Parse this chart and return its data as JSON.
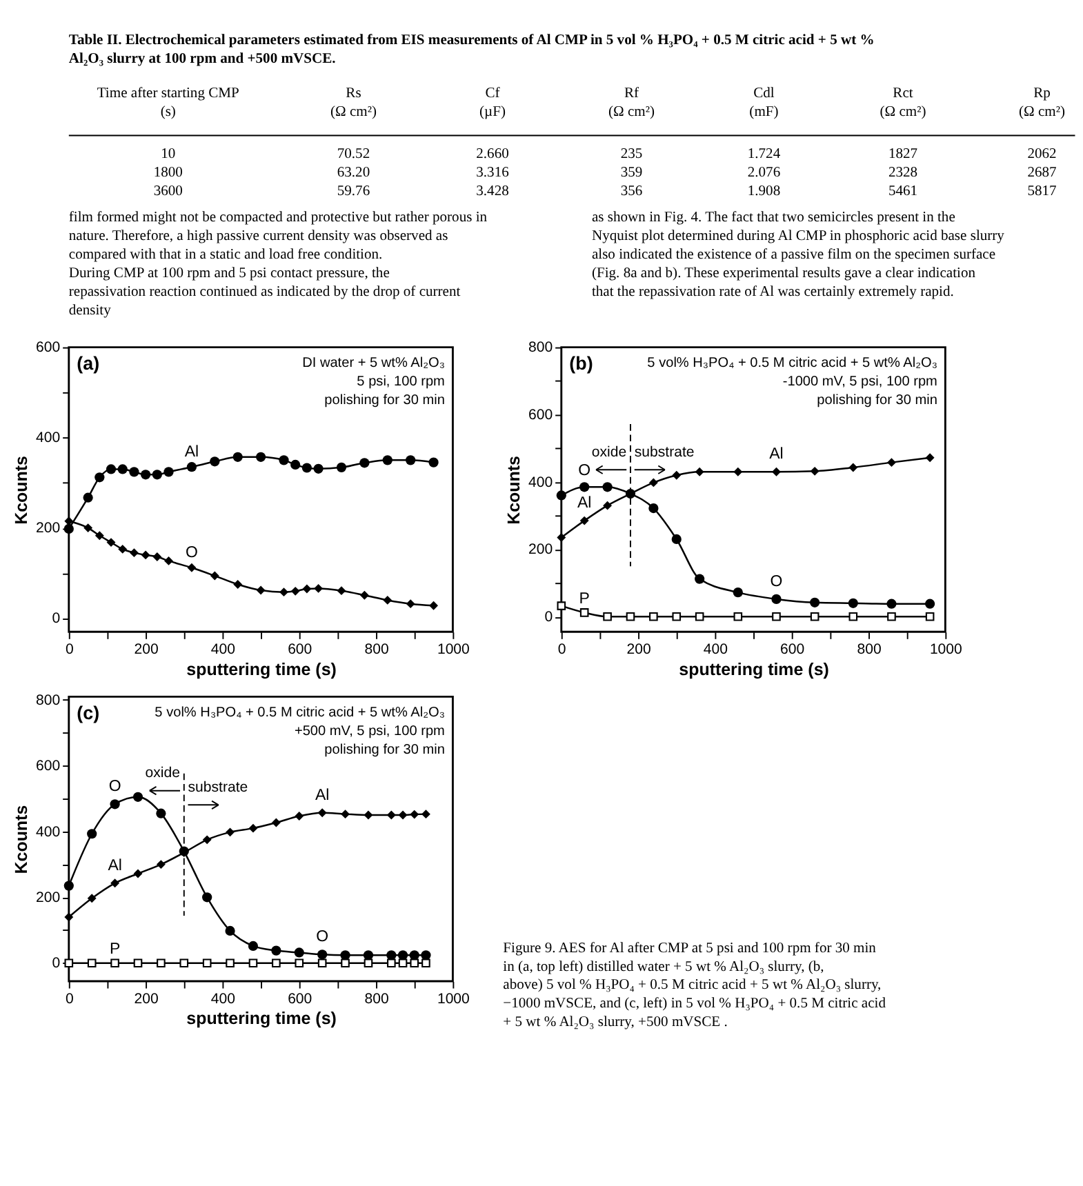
{
  "chart_data": [
    {
      "type": "other",
      "title": "Table II. Electrochemical parameters estimated from EIS measurements of Al CMP in 5 vol % H₃PO₄ + 0.5 M citric acid + 5 wt % Al₂O₃ slurry at 100 rpm and +500 mVSCE.",
      "annotations": [
        "Time after starting CMP\n(s)",
        "Rs\n(Ω cm²)",
        "Cf\n(µF)",
        "Rf\n(Ω cm²)",
        "Cdl\n(mF)",
        "Rct\n(Ω cm²)",
        "Rp\n(Ω cm²)",
        "10",
        "70.52",
        "2.660",
        "235",
        "1.724",
        "1827",
        "2062",
        "1800",
        "63.20",
        "3.316",
        "359",
        "2.076",
        "2328",
        "2687",
        "3600",
        "59.76",
        "3.428",
        "356",
        "1.908",
        "5461",
        "5817",
        "film formed might not be compacted and protective but rather porous in nature. Therefore, a high passive current density was observed as compared with that in a static and load free condition.\n    During CMP at 100 rpm and 5 psi contact pressure, the repassivation reaction continued as indicated by the drop of current density",
        "as shown in Fig. 4. The fact that two semicircles present in the Nyquist plot determined during Al CMP in phosphoric acid base slurry also indicated the existence of a passive film on the specimen surface (Fig. 8a and b). These experimental results gave a clear indication that the repassivation rate of Al was certainly extremely rapid."
      ]
    },
    {
      "type": "line",
      "title": "(a)",
      "xlabel": "sputtering time (s)",
      "ylabel": "Kcounts",
      "xlim": [
        0,
        1000
      ],
      "ylim": [
        -30,
        600
      ],
      "xticks": [
        0,
        {
          "value": 100,
          "label": null
        },
        200,
        {
          "value": 300,
          "label": null
        },
        400,
        {
          "value": 500,
          "label": null
        },
        600,
        {
          "value": 700,
          "label": null
        },
        800,
        {
          "value": 900,
          "label": null
        },
        1000
      ],
      "yticks": [
        0,
        {
          "value": 100,
          "label": null
        },
        200,
        {
          "value": 300,
          "label": null
        },
        400,
        {
          "value": 500,
          "label": null
        },
        600
      ],
      "line_style": "solid",
      "annotations": [
        "DI water + 5 wt% Al₂O₃",
        "5 psi, 100 rpm",
        "polishing for 30 min"
      ],
      "series": [
        {
          "name": "Al",
          "color": "#000000",
          "marker": "circle",
          "x": [
            0,
            50,
            80,
            110,
            140,
            170,
            200,
            230,
            260,
            320,
            380,
            440,
            500,
            560,
            590,
            620,
            650,
            710,
            770,
            830,
            890,
            950
          ],
          "values": [
            198,
            267,
            312,
            330,
            330,
            324,
            318,
            318,
            324,
            335,
            347,
            357,
            357,
            350,
            340,
            333,
            331,
            334,
            344,
            350,
            350,
            345
          ]
        },
        {
          "name": "O",
          "color": "#000000",
          "marker": "diamond",
          "x": [
            0,
            50,
            80,
            110,
            140,
            170,
            200,
            230,
            260,
            320,
            380,
            440,
            500,
            560,
            590,
            620,
            650,
            710,
            770,
            830,
            890,
            950
          ],
          "values": [
            215,
            200,
            183,
            168,
            153,
            145,
            140,
            136,
            127,
            112,
            94,
            75,
            62,
            58,
            60,
            65,
            66,
            61,
            51,
            40,
            32,
            28
          ]
        }
      ]
    },
    {
      "type": "line",
      "title": "(b)",
      "xlabel": "sputtering time (s)",
      "ylabel": "Kcounts",
      "xlim": [
        0,
        1000
      ],
      "ylim": [
        -45,
        800
      ],
      "xticks": [
        0,
        {
          "value": 100,
          "label": null
        },
        200,
        {
          "value": 300,
          "label": null
        },
        400,
        {
          "value": 500,
          "label": null
        },
        600,
        {
          "value": 700,
          "label": null
        },
        800,
        {
          "value": 900,
          "label": null
        },
        1000
      ],
      "yticks": [
        0,
        {
          "value": 100,
          "label": null
        },
        200,
        {
          "value": 300,
          "label": null
        },
        400,
        {
          "value": 500,
          "label": null
        },
        600,
        {
          "value": 700,
          "label": null
        },
        800
      ],
      "line_style": "solid",
      "ref_lines": [
        {
          "axis": "x",
          "value": 180,
          "line_style": "dashed"
        }
      ],
      "annotations": [
        "5 vol% H₃PO₄ + 0.5 M citric acid + 5 wt% Al₂O₃",
        "-1000 mV, 5 psi, 100 rpm",
        "polishing for 30 min",
        "oxide",
        "substrate",
        "Al",
        "O"
      ],
      "series": [
        {
          "name": "O",
          "color": "#000000",
          "marker": "circle",
          "x": [
            0,
            60,
            120,
            180,
            240,
            300,
            360,
            460,
            560,
            660,
            760,
            860,
            960
          ],
          "values": [
            360,
            385,
            385,
            365,
            322,
            230,
            112,
            72,
            52,
            42,
            40,
            38,
            38
          ]
        },
        {
          "name": "Al",
          "color": "#000000",
          "marker": "diamond",
          "x": [
            0,
            60,
            120,
            180,
            240,
            300,
            360,
            460,
            560,
            660,
            760,
            860,
            960
          ],
          "values": [
            235,
            285,
            330,
            365,
            398,
            420,
            430,
            430,
            430,
            432,
            443,
            458,
            472
          ]
        },
        {
          "name": "P",
          "color": "#000000",
          "marker": "square",
          "x": [
            0,
            60,
            120,
            180,
            240,
            300,
            360,
            460,
            560,
            660,
            760,
            860,
            960
          ],
          "values": [
            32,
            12,
            0,
            0,
            0,
            0,
            0,
            0,
            0,
            0,
            0,
            0,
            0
          ]
        }
      ]
    },
    {
      "type": "line",
      "title": "(c)",
      "xlabel": "sputtering time (s)",
      "ylabel": "Kcounts",
      "xlim": [
        0,
        1000
      ],
      "ylim": [
        -55,
        810
      ],
      "xticks": [
        0,
        {
          "value": 100,
          "label": null
        },
        200,
        {
          "value": 300,
          "label": null
        },
        400,
        {
          "value": 500,
          "label": null
        },
        600,
        {
          "value": 700,
          "label": null
        },
        800,
        {
          "value": 900,
          "label": null
        },
        1000
      ],
      "yticks": [
        0,
        {
          "value": 100,
          "label": null
        },
        200,
        {
          "value": 300,
          "label": null
        },
        400,
        {
          "value": 500,
          "label": null
        },
        600,
        {
          "value": 700,
          "label": null
        },
        800
      ],
      "line_style": "solid",
      "ref_lines": [
        {
          "axis": "x",
          "value": 300,
          "line_style": "dashed"
        }
      ],
      "annotations": [
        "5 vol% H₃PO₄ + 0.5 M citric acid + 5 wt% Al₂O₃",
        "+500 mV, 5 psi, 100 rpm",
        "polishing for 30 min",
        "oxide",
        "substrate",
        "Al",
        "O"
      ],
      "series": [
        {
          "name": "O",
          "color": "#000000",
          "marker": "circle",
          "x": [
            0,
            60,
            120,
            180,
            240,
            300,
            360,
            420,
            480,
            540,
            600,
            660,
            720,
            780,
            840,
            870,
            900,
            930
          ],
          "values": [
            235,
            393,
            483,
            505,
            455,
            340,
            200,
            98,
            52,
            38,
            32,
            26,
            24,
            24,
            24,
            24,
            24,
            24
          ]
        },
        {
          "name": "Al",
          "color": "#000000",
          "marker": "diamond",
          "x": [
            0,
            60,
            120,
            180,
            240,
            300,
            360,
            420,
            480,
            540,
            600,
            660,
            720,
            780,
            840,
            870,
            900,
            930
          ],
          "values": [
            140,
            197,
            243,
            272,
            300,
            336,
            375,
            398,
            410,
            427,
            447,
            457,
            453,
            450,
            450,
            450,
            452,
            453
          ]
        },
        {
          "name": "P",
          "color": "#000000",
          "marker": "square",
          "x": [
            0,
            60,
            120,
            180,
            240,
            300,
            360,
            420,
            480,
            540,
            600,
            660,
            720,
            780,
            840,
            870,
            900,
            930
          ],
          "values": [
            0,
            0,
            0,
            0,
            0,
            0,
            0,
            0,
            0,
            0,
            0,
            0,
            0,
            0,
            0,
            0,
            0,
            0
          ]
        }
      ]
    },
    {
      "type": "other",
      "annotations": [
        "Figure 9. AES for Al after CMP at 5 psi and 100 rpm for 30 min in (a, top left) distilled water + 5 wt % Al₂O₃ slurry, (b, above) 5 vol % H₃PO₄ + 0.5 M citric acid + 5 wt % Al₂O₃ slurry, −1000 mVSCE, and (c, left) in 5 vol % H₃PO₄ + 0.5 M citric acid + 5 wt % Al₂O₃ slurry, +500 mVSCE ."
      ]
    }
  ]
}
